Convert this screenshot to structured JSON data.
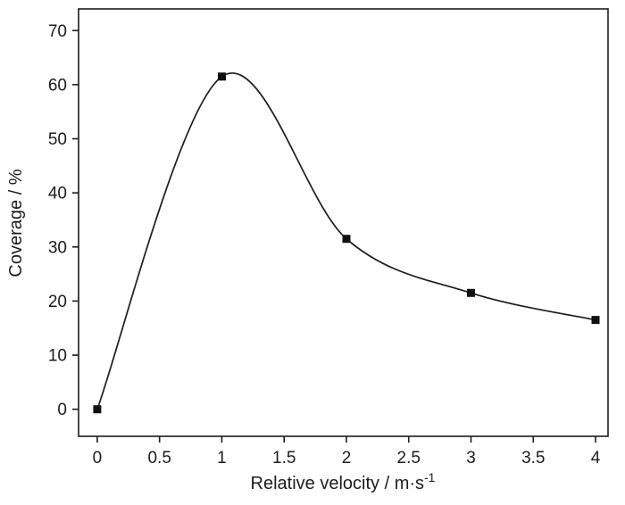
{
  "chart_data": {
    "type": "line",
    "x": [
      0,
      1,
      2,
      3,
      4
    ],
    "y": [
      0,
      61.5,
      31.5,
      21.5,
      16.5
    ],
    "series": [
      {
        "name": "coverage",
        "x": [
          0,
          1,
          2,
          3,
          4
        ],
        "values": [
          0,
          61.5,
          31.5,
          21.5,
          16.5
        ]
      }
    ],
    "title": "",
    "xlabel": "Relative velocity / m·s⁻¹",
    "xlabel_base": "Relative velocity / m·s",
    "xlabel_sup": "-1",
    "ylabel": "Coverage / %",
    "xlim": [
      -0.15,
      4.1
    ],
    "ylim": [
      -5,
      74
    ],
    "xticks": [
      0,
      0.5,
      1,
      1.5,
      2,
      2.5,
      3,
      3.5,
      4
    ],
    "xtick_labels": [
      "0",
      "0.5",
      "1",
      "1.5",
      "2",
      "2.5",
      "3",
      "3.5",
      "4"
    ],
    "yticks": [
      0,
      10,
      20,
      30,
      40,
      50,
      60,
      70
    ],
    "ytick_labels": [
      "0",
      "10",
      "20",
      "30",
      "40",
      "50",
      "60",
      "70"
    ],
    "grid": false,
    "legend": null,
    "marker": "square",
    "line_style": "smooth-curve",
    "colors": {
      "line": "#1c1c1c",
      "marker": "#111111",
      "text": "#1c1c1c",
      "background": "#ffffff"
    }
  }
}
